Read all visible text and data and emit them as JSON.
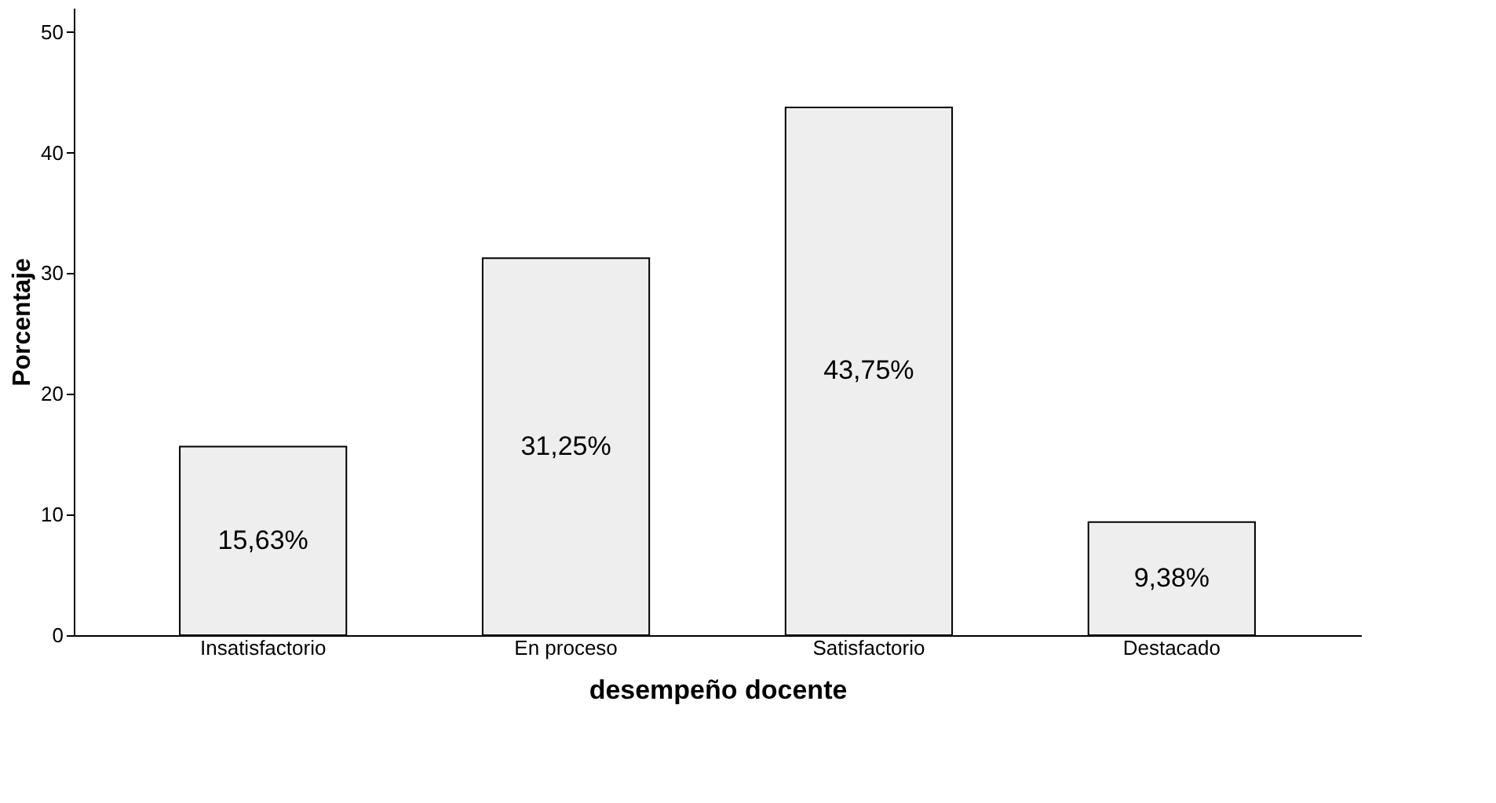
{
  "chart_data": {
    "type": "bar",
    "xlabel": "desempeño docente",
    "ylabel": "Porcentaje",
    "categories": [
      "Insatisfactorio",
      "En proceso",
      "Satisfactorio",
      "Destacado"
    ],
    "values": [
      15.63,
      31.25,
      43.75,
      9.38
    ],
    "value_labels": [
      "15,63%",
      "31,25%",
      "43,75%",
      "9,38%"
    ],
    "color": "#eeeeee",
    "ylim": [
      0,
      52
    ],
    "yticks": [
      0,
      10,
      20,
      30,
      40,
      50
    ]
  }
}
